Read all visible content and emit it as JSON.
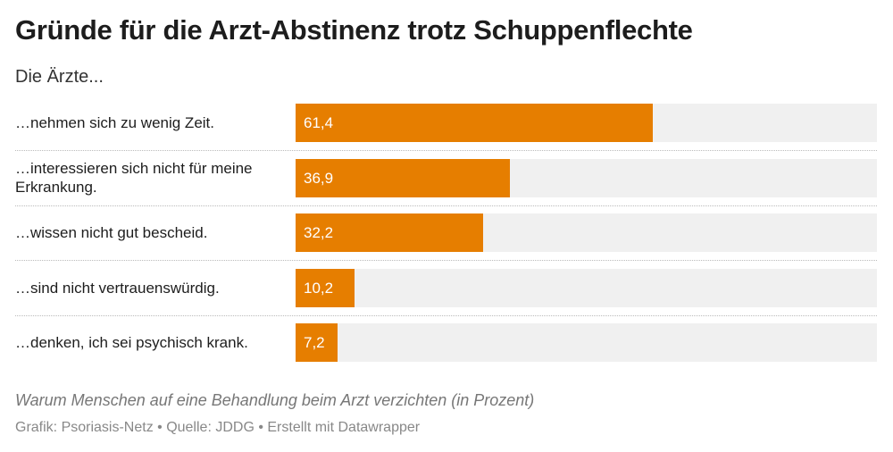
{
  "chart_data": {
    "type": "bar",
    "orientation": "horizontal",
    "title": "Gründe für die Arzt-Abstinenz trotz Schuppenflechte",
    "subtitle": "Die Ärzte...",
    "categories": [
      "…nehmen sich zu wenig Zeit.",
      "…interessieren sich nicht für meine Erkrankung.",
      "…wissen nicht gut bescheid.",
      "…sind nicht vertrauenswürdig.",
      "…denken, ich sei psychisch krank."
    ],
    "values": [
      61.4,
      36.9,
      32.2,
      10.2,
      7.2
    ],
    "value_labels": [
      "61,4",
      "36,9",
      "32,2",
      "10,2",
      "7,2"
    ],
    "color": "#e67e00",
    "xlim": [
      0,
      100
    ],
    "note": "Warum Menschen auf eine Behandlung beim Arzt verzichten (in Prozent)",
    "footer": "Grafik: Psoriasis-Netz • Quelle: JDDG • Erstellt mit Datawrapper"
  }
}
